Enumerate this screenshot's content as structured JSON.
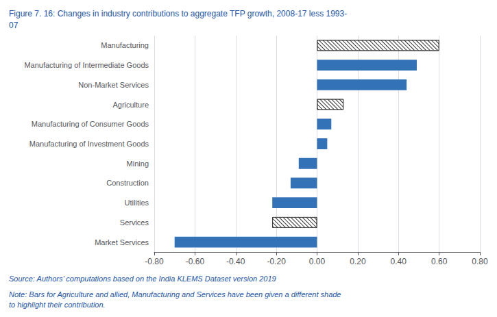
{
  "chart_data": {
    "type": "bar",
    "orientation": "horizontal",
    "title": "Figure 7. 16: Changes in industry contributions to aggregate TFP growth, 2008-17 less 1993-\n07",
    "annotations": [
      "Source: Authors’ computations based on the India KLEMS Dataset version 2019",
      "Note: Bars for Agriculture and allied, Manufacturing and Services have been given a different shade\nto highlight their contribution."
    ],
    "categories": [
      "Manufacturing",
      "Manufacturing of Intermediate Goods",
      "Non-Market Services",
      "Agriculture",
      "Manufacturing of Consumer Goods",
      "Manufacturing of Investment Goods",
      "Mining",
      "Construction",
      "Utilities",
      "Services",
      "Market Services"
    ],
    "values": [
      0.6,
      0.49,
      0.44,
      0.13,
      0.07,
      0.05,
      -0.09,
      -0.13,
      -0.22,
      -0.22,
      -0.7
    ],
    "colors": [
      "#ffffff",
      "#3472B8",
      "#3472B8",
      "#ffffff",
      "#3472B8",
      "#3472B8",
      "#3472B8",
      "#3472B8",
      "#3472B8",
      "#ffffff",
      "#3472B8"
    ],
    "xlim": [
      -0.8,
      0.8
    ],
    "xticks": [
      {
        "value": -0.8,
        "label": "-0.80"
      },
      {
        "value": -0.6,
        "label": "-0.60"
      },
      {
        "value": -0.4,
        "label": "-0.40"
      },
      {
        "value": -0.2,
        "label": "-0.20"
      },
      {
        "value": 0.0,
        "label": "0.00"
      },
      {
        "value": 0.2,
        "label": "0.20"
      },
      {
        "value": 0.4,
        "label": "0.40"
      },
      {
        "value": 0.6,
        "label": "0.60"
      },
      {
        "value": 0.8,
        "label": "0.80"
      }
    ],
    "grid": true
  }
}
